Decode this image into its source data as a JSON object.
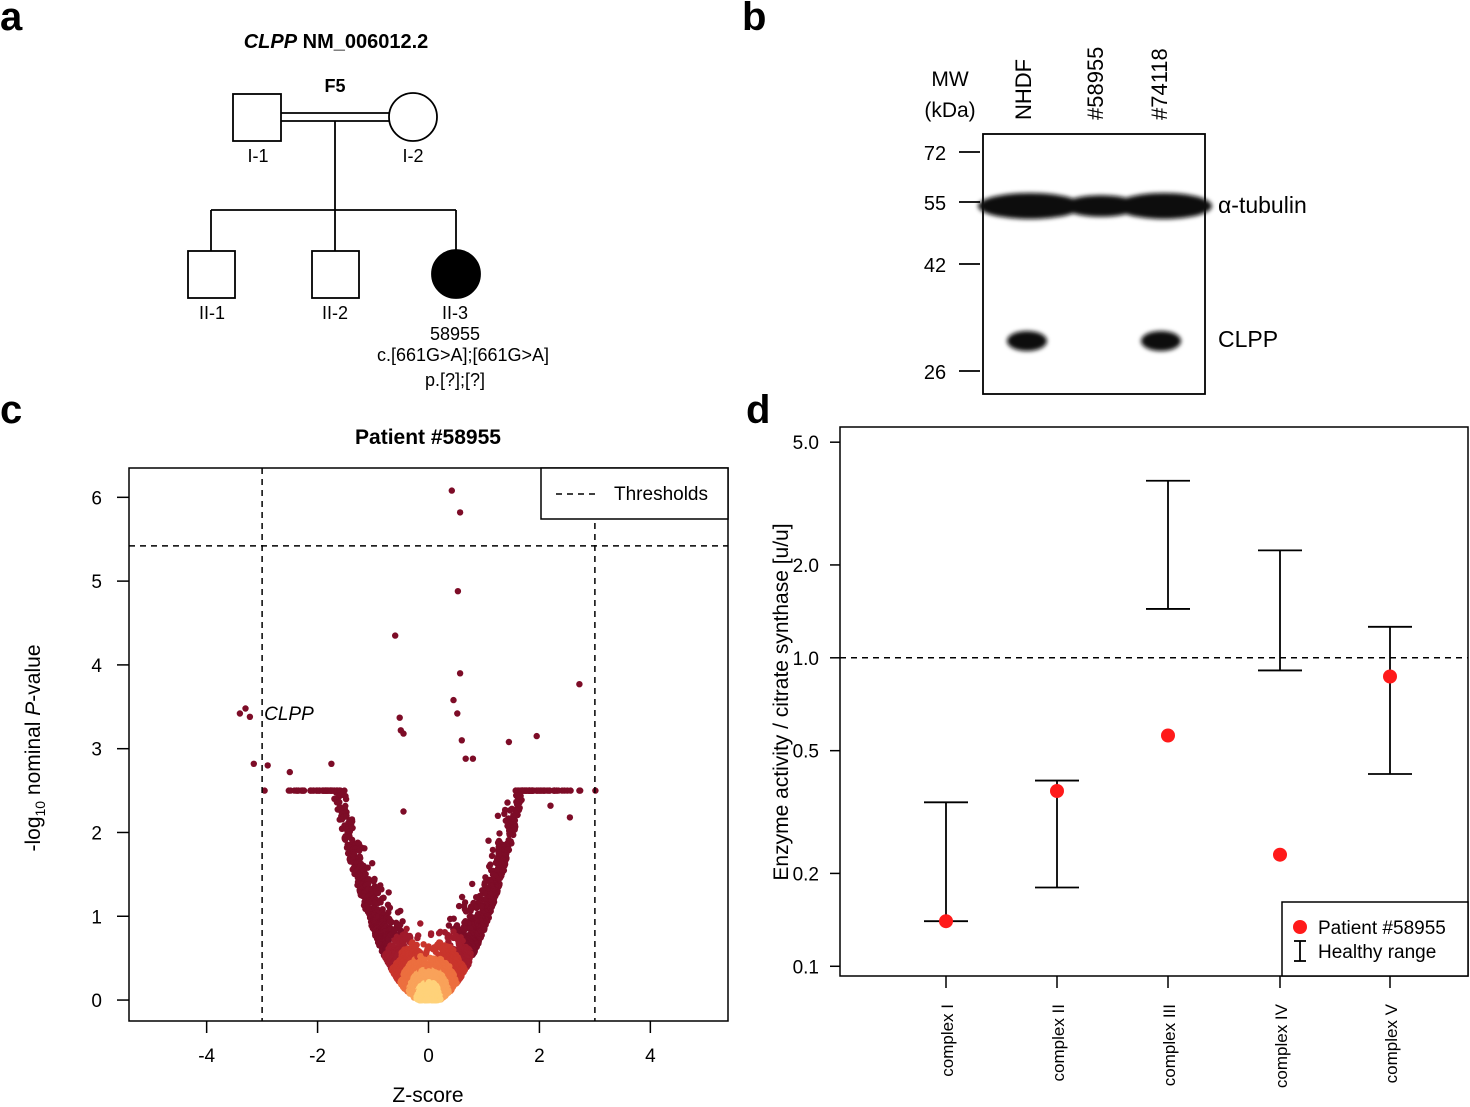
{
  "panels": {
    "a": {
      "letter": "a",
      "gene": "CLPP",
      "transcript": "NM_006012.2",
      "family": "F5",
      "individuals": [
        "I-1",
        "I-2",
        "II-1",
        "II-2",
        "II-3"
      ],
      "patient_id": "58955",
      "variant_c": "c.[661G>A];[661G>A]",
      "variant_p": "p.[?];[?]"
    },
    "b": {
      "letter": "b",
      "mw_label_1": "MW",
      "mw_label_2": "(kDa)",
      "lanes": [
        "NHDF",
        "#58955",
        "#74118"
      ],
      "markers": [
        "72",
        "55",
        "42",
        "26"
      ],
      "band_labels": [
        "α-tubulin",
        "CLPP"
      ],
      "band_presence": {
        "tubulin": [
          1,
          0.8,
          1
        ],
        "clpp": [
          1,
          0,
          1
        ]
      }
    },
    "c": {
      "letter": "c"
    },
    "d": {
      "letter": "d"
    }
  },
  "chart_data": [
    {
      "type": "scatter",
      "title": "Patient #58955",
      "xlabel": "Z-score",
      "ylabel_prefix": "-log",
      "ylabel_sub": "10",
      "ylabel_mid": " nominal ",
      "ylabel_italic": "P",
      "ylabel_suffix": "-value",
      "xlim": [
        -5.4,
        5.4
      ],
      "ylim": [
        -0.25,
        6.35
      ],
      "xticks": [
        -4,
        -2,
        0,
        2,
        4
      ],
      "xtick_labels": [
        "-4",
        "-2",
        "0",
        "2",
        "4"
      ],
      "yticks": [
        0,
        1,
        2,
        3,
        4,
        5,
        6
      ],
      "ytick_labels": [
        "0",
        "1",
        "2",
        "3",
        "4",
        "5",
        "6"
      ],
      "thresholds": {
        "z": [
          -3,
          3
        ],
        "p": 5.42
      },
      "legend": {
        "entry": "Thresholds",
        "position": "top-right"
      },
      "annotation": {
        "text": "CLPP",
        "x": -3.0,
        "y": 3.4
      },
      "highlight_points": [
        {
          "x": 0.42,
          "y": 6.08
        },
        {
          "x": 0.57,
          "y": 5.82
        },
        {
          "x": 0.53,
          "y": 4.88
        },
        {
          "x": -0.6,
          "y": 4.35
        },
        {
          "x": 0.57,
          "y": 3.9
        },
        {
          "x": 2.72,
          "y": 3.77
        },
        {
          "x": 0.45,
          "y": 3.58
        },
        {
          "x": 0.52,
          "y": 3.42
        },
        {
          "x": -0.52,
          "y": 3.37
        },
        {
          "x": -0.5,
          "y": 3.22
        },
        {
          "x": -0.45,
          "y": 3.18
        },
        {
          "x": 0.6,
          "y": 3.1
        },
        {
          "x": 1.45,
          "y": 3.08
        },
        {
          "x": 1.95,
          "y": 3.15
        },
        {
          "x": -3.4,
          "y": 3.42
        },
        {
          "x": -3.3,
          "y": 3.48
        },
        {
          "x": -3.22,
          "y": 3.38
        },
        {
          "x": -3.15,
          "y": 2.82
        },
        {
          "x": -2.9,
          "y": 2.8
        },
        {
          "x": -2.5,
          "y": 2.72
        },
        {
          "x": -1.75,
          "y": 2.82
        },
        {
          "x": 0.67,
          "y": 2.88
        },
        {
          "x": 0.8,
          "y": 2.88
        },
        {
          "x": 2.2,
          "y": 2.32
        },
        {
          "x": 2.55,
          "y": 2.18
        },
        {
          "x": -0.45,
          "y": 2.25
        }
      ],
      "cloud": {
        "n_points": 2600,
        "spread": "V-shaped around z=0, density highest near origin"
      }
    },
    {
      "type": "errorbar",
      "ylabel": "Enzyme activity / citrate synthase [u/u]",
      "yscale": "log",
      "ylim": [
        0.093,
        5.6
      ],
      "yticks": [
        0.1,
        0.2,
        0.5,
        1.0,
        2.0,
        5.0
      ],
      "ytick_labels": [
        "0.1",
        "0.2",
        "0.5",
        "1.0",
        "2.0",
        "5.0"
      ],
      "reference_line": 1.0,
      "categories": [
        "complex I",
        "complex II",
        "complex III",
        "complex IV",
        "complex V"
      ],
      "healthy_range": [
        {
          "low": 0.14,
          "high": 0.34
        },
        {
          "low": 0.18,
          "high": 0.4
        },
        {
          "low": 1.44,
          "high": 3.75
        },
        {
          "low": 0.91,
          "high": 2.23
        },
        {
          "low": 0.42,
          "high": 1.26
        }
      ],
      "patient_values": [
        0.14,
        0.37,
        0.56,
        0.23,
        0.87
      ],
      "legend": {
        "patient_label": "Patient #58955",
        "range_label": "Healthy range",
        "position": "bottom-right"
      },
      "colors": {
        "patient": "#ff1a1a",
        "range": "#000000"
      }
    }
  ]
}
